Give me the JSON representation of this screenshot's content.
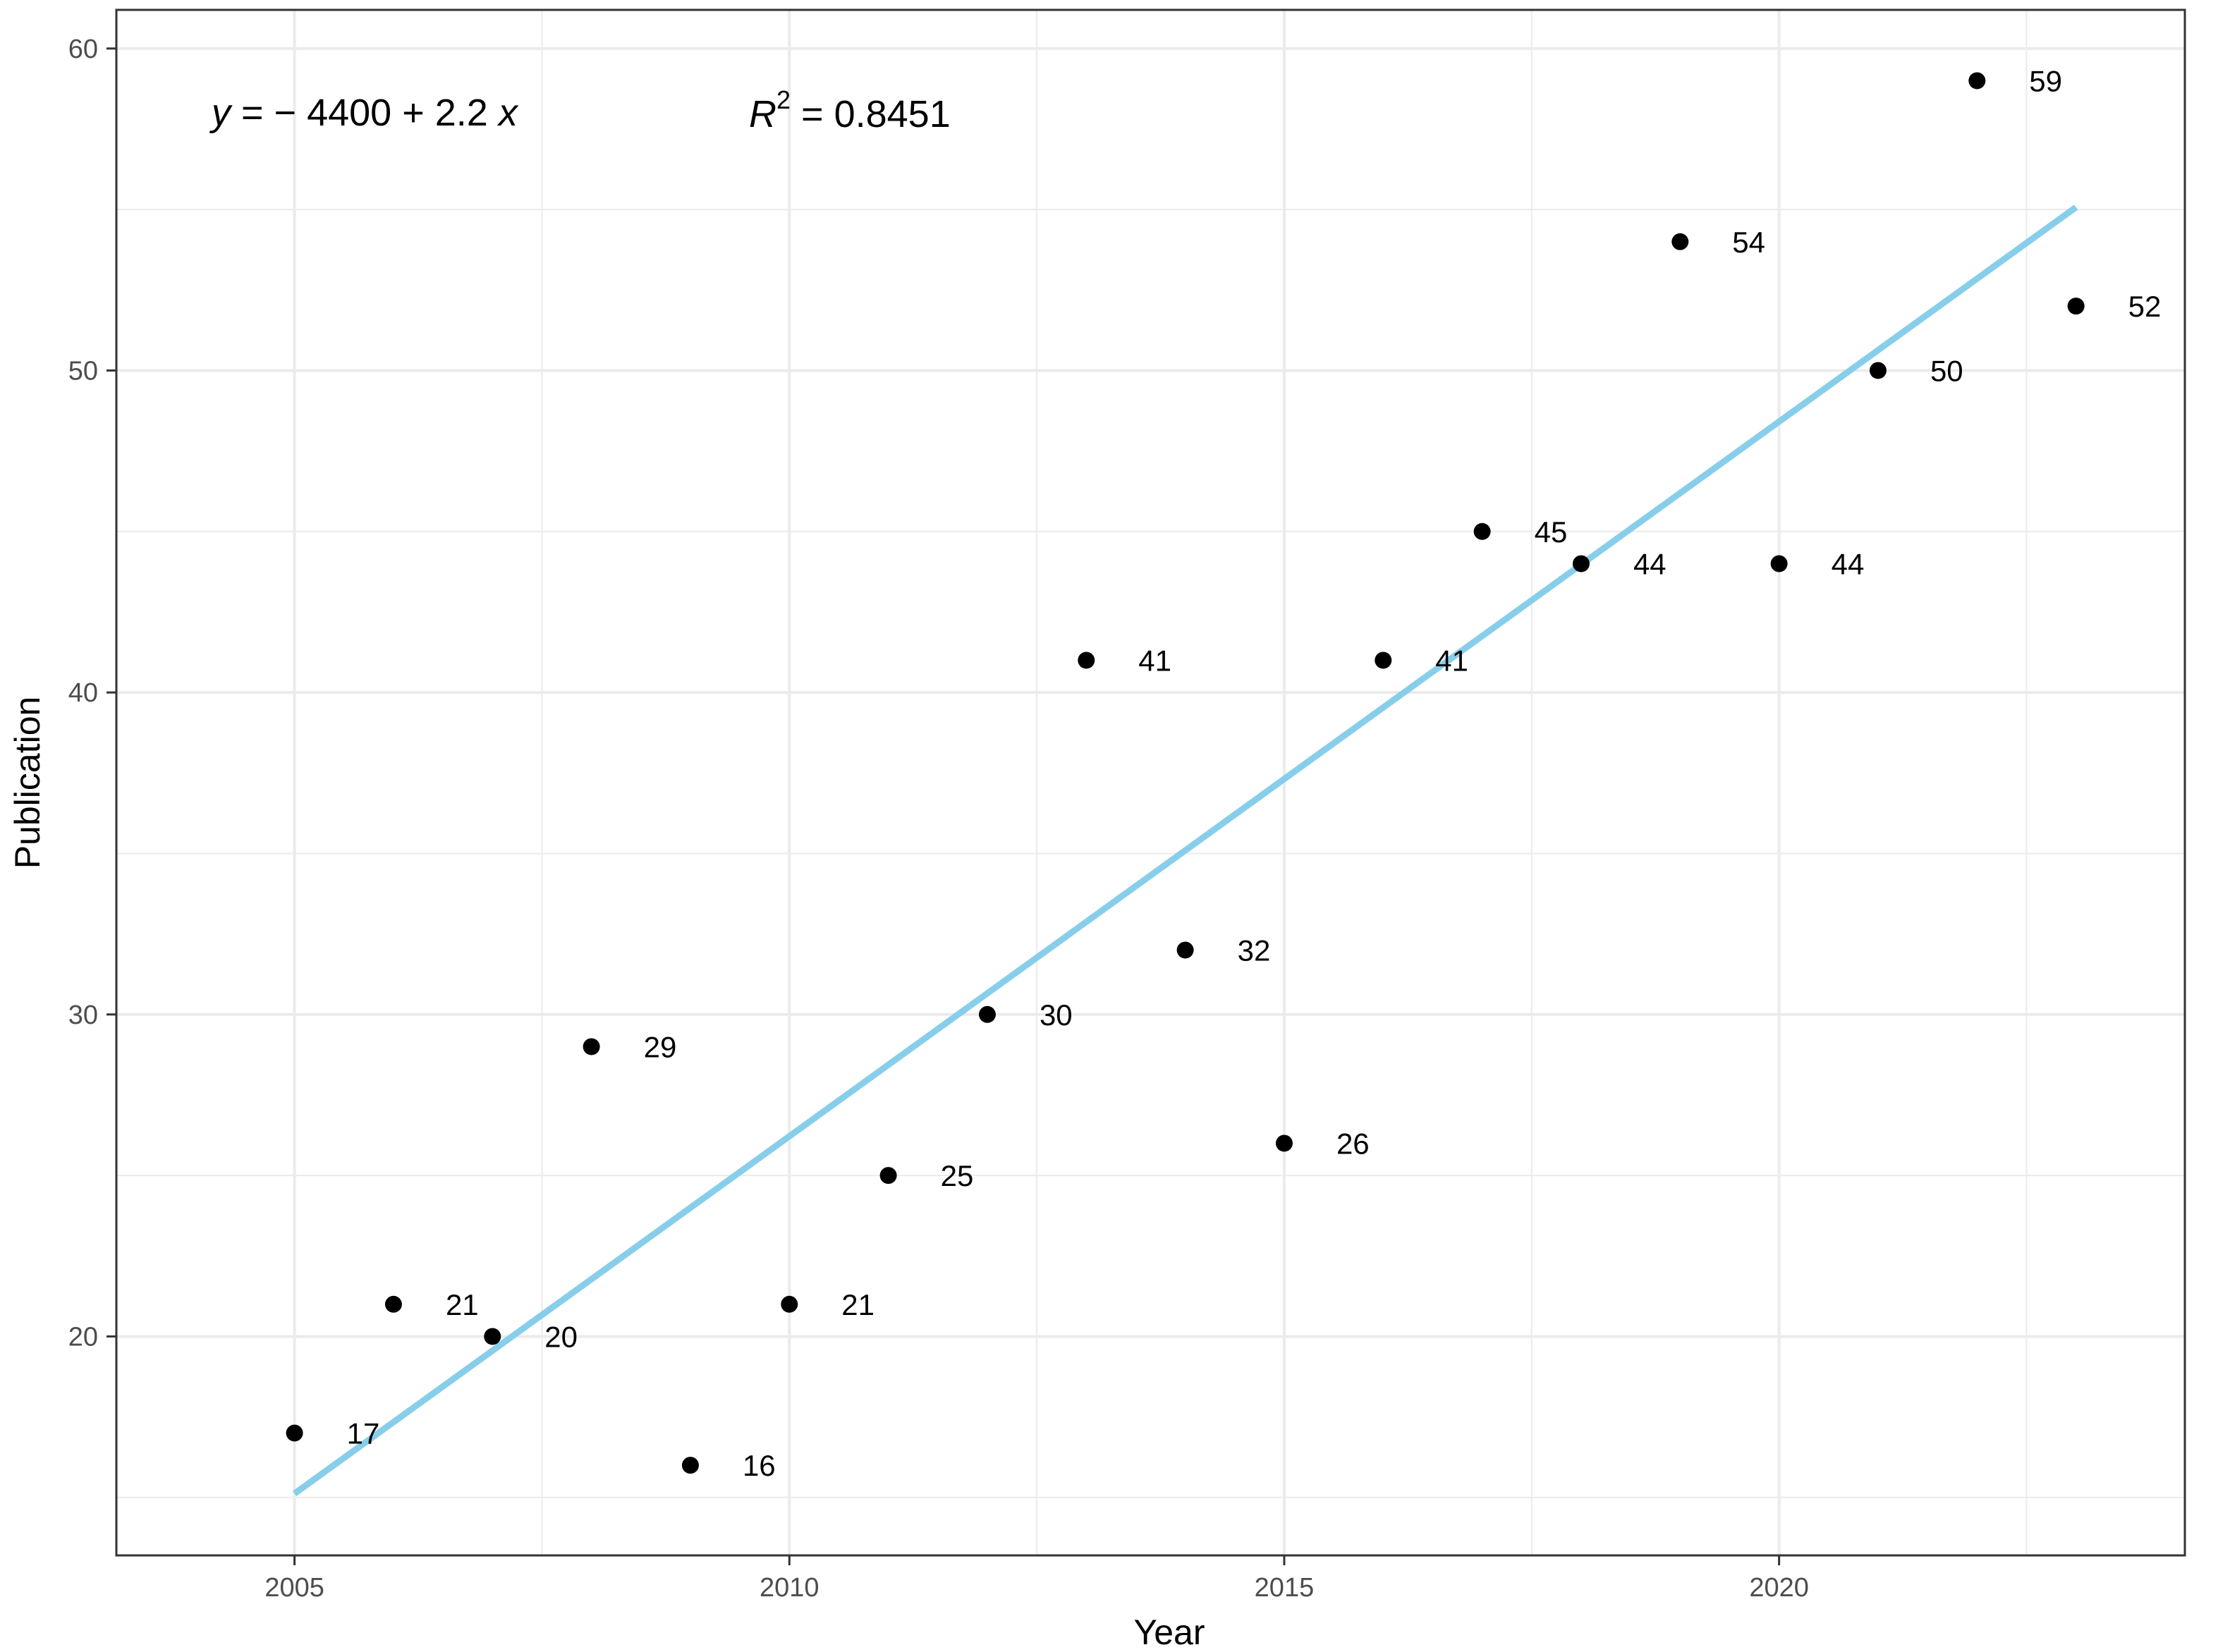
{
  "chart_data": {
    "type": "scatter",
    "xlabel": "Year",
    "ylabel": "Publication",
    "xlim": [
      2003.2,
      2024.1
    ],
    "ylim": [
      13.2,
      61.2
    ],
    "x_ticks": [
      2005,
      2010,
      2015,
      2020
    ],
    "y_ticks": [
      20,
      30,
      40,
      50,
      60
    ],
    "grid": true,
    "points": [
      {
        "x": 2005,
        "y": 17,
        "label": "17"
      },
      {
        "x": 2006,
        "y": 21,
        "label": "21"
      },
      {
        "x": 2007,
        "y": 20,
        "label": "20"
      },
      {
        "x": 2008,
        "y": 29,
        "label": "29"
      },
      {
        "x": 2009,
        "y": 16,
        "label": "16"
      },
      {
        "x": 2010,
        "y": 21,
        "label": "21"
      },
      {
        "x": 2011,
        "y": 25,
        "label": "25"
      },
      {
        "x": 2012,
        "y": 30,
        "label": "30"
      },
      {
        "x": 2013,
        "y": 41,
        "label": "41"
      },
      {
        "x": 2014,
        "y": 32,
        "label": "32"
      },
      {
        "x": 2015,
        "y": 26,
        "label": "26"
      },
      {
        "x": 2016,
        "y": 41,
        "label": "41"
      },
      {
        "x": 2017,
        "y": 45,
        "label": "45"
      },
      {
        "x": 2018,
        "y": 44,
        "label": "44"
      },
      {
        "x": 2019,
        "y": 54,
        "label": "54"
      },
      {
        "x": 2020,
        "y": 44,
        "label": "44"
      },
      {
        "x": 2021,
        "y": 50,
        "label": "50"
      },
      {
        "x": 2022,
        "y": 59,
        "label": "59"
      },
      {
        "x": 2023,
        "y": 52,
        "label": "52"
      }
    ],
    "fit_line": {
      "x": [
        2005,
        2023
      ],
      "y": [
        15.12,
        55.07
      ],
      "color": "#87CEEB"
    },
    "annotations": {
      "equation": {
        "y": "y",
        "rest": " = − 4400 + 2.2 ",
        "x": "x"
      },
      "r_squared": {
        "r": "R",
        "sup": "2",
        "rest": " = 0.8451"
      }
    },
    "colors": {
      "point": "#000000",
      "fit_line": "#87CEEB",
      "grid": "#ebebeb",
      "border": "#333333"
    }
  }
}
